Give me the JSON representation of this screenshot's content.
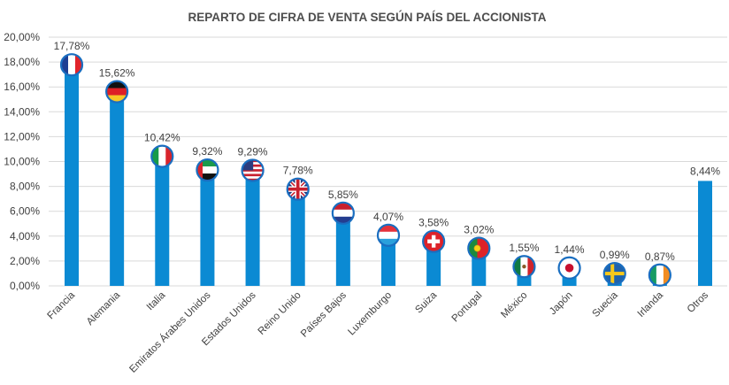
{
  "chart_data": {
    "type": "bar",
    "title": "REPARTO DE CIFRA DE VENTA SEGÚN PAÍS DEL ACCIONISTA",
    "xlabel": "",
    "ylabel": "",
    "ylim": [
      0,
      20
    ],
    "yticks": [
      0,
      2,
      4,
      6,
      8,
      10,
      12,
      14,
      16,
      18,
      20
    ],
    "ytick_labels": [
      "0,00%",
      "2,00%",
      "4,00%",
      "6,00%",
      "8,00%",
      "10,00%",
      "12,00%",
      "14,00%",
      "16,00%",
      "18,00%",
      "20,00%"
    ],
    "categories": [
      "Francia",
      "Alemania",
      "Italia",
      "Emiratos Árabes Unidos",
      "Estados Unidos",
      "Reino Unido",
      "Países Bajos",
      "Luxemburgo",
      "Suiza",
      "Portugal",
      "México",
      "Japón",
      "Suecia",
      "Irlanda",
      "Otros"
    ],
    "values": [
      17.78,
      15.62,
      10.42,
      9.32,
      9.29,
      7.78,
      5.85,
      4.07,
      3.58,
      3.02,
      1.55,
      1.44,
      0.99,
      0.87,
      8.44
    ],
    "data_labels": [
      "17,78%",
      "15,62%",
      "10,42%",
      "9,32%",
      "9,29%",
      "7,78%",
      "5,85%",
      "4,07%",
      "3,58%",
      "3,02%",
      "1,55%",
      "1,44%",
      "0,99%",
      "0,87%",
      "8,44%"
    ],
    "flags": [
      "france-flag",
      "germany-flag",
      "italy-flag",
      "uae-flag",
      "usa-flag",
      "uk-flag",
      "netherlands-flag",
      "luxembourg-flag",
      "switzerland-flag",
      "portugal-flag",
      "mexico-flag",
      "japan-flag",
      "sweden-flag",
      "ireland-flag",
      ""
    ],
    "colors": {
      "bar": "#0b8ad3",
      "grid": "#d9d9d9",
      "text": "#404040"
    }
  }
}
